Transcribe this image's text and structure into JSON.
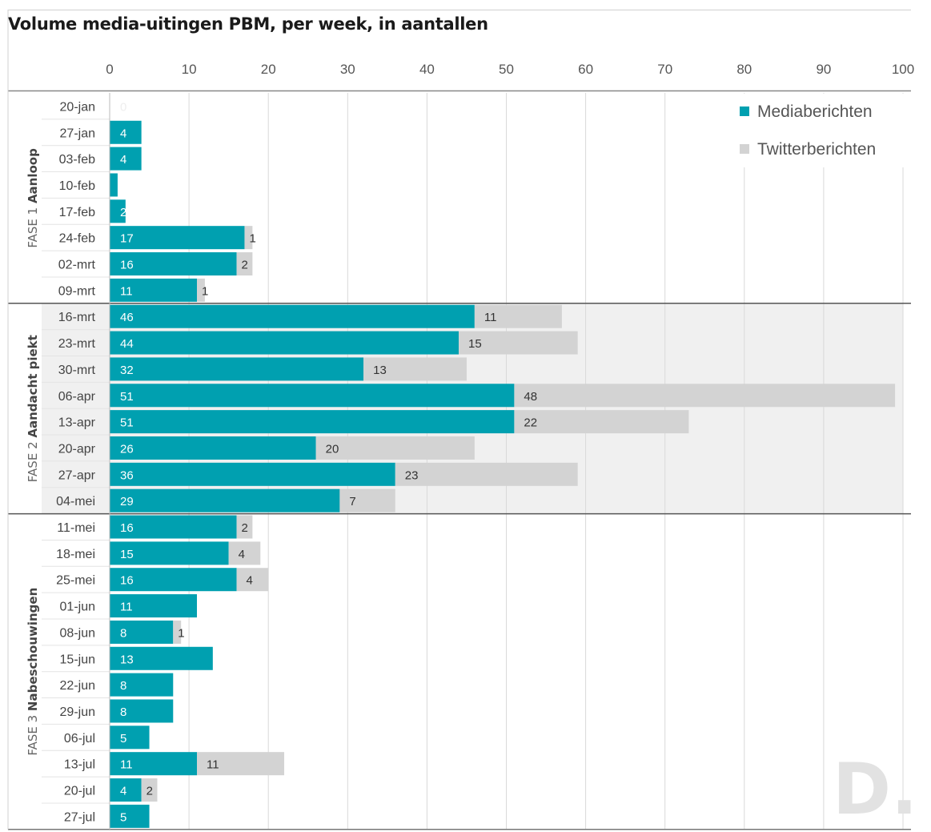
{
  "chart_data": {
    "type": "bar",
    "orientation": "horizontal",
    "stacked": true,
    "title": "Volume media-uitingen PBM, per week, in aantallen",
    "xlim": [
      0,
      100
    ],
    "xticks": [
      0,
      10,
      20,
      30,
      40,
      50,
      60,
      70,
      80,
      90,
      100
    ],
    "grid": true,
    "legend_position": "top-right",
    "watermark": "D.",
    "phases": [
      {
        "label_prefix": "FASE 1 ",
        "label_bold": "Aanloop",
        "count": 8
      },
      {
        "label_prefix": "FASE 2 ",
        "label_bold": "Aandacht piekt",
        "count": 8
      },
      {
        "label_prefix": "FASE 3 ",
        "label_bold": "Nabeschouwingen",
        "count": 12
      }
    ],
    "categories": [
      "20-jan",
      "27-jan",
      "03-feb",
      "10-feb",
      "17-feb",
      "24-feb",
      "02-mrt",
      "09-mrt",
      "16-mrt",
      "23-mrt",
      "30-mrt",
      "06-apr",
      "13-apr",
      "20-apr",
      "27-apr",
      "04-mei",
      "11-mei",
      "18-mei",
      "25-mei",
      "01-jun",
      "08-jun",
      "15-jun",
      "22-jun",
      "29-jun",
      "06-jul",
      "13-jul",
      "20-jul",
      "27-jul"
    ],
    "series": [
      {
        "name": "Mediaberichten",
        "color": "#00a0b0",
        "values": [
          0,
          4,
          4,
          1,
          2,
          17,
          16,
          11,
          46,
          44,
          32,
          51,
          51,
          26,
          36,
          29,
          16,
          15,
          16,
          11,
          8,
          13,
          8,
          8,
          5,
          11,
          4,
          5
        ],
        "labels": [
          "0",
          "4",
          "4",
          "",
          "2",
          "17",
          "16",
          "11",
          "46",
          "44",
          "32",
          "51",
          "51",
          "26",
          "36",
          "29",
          "16",
          "15",
          "16",
          "11",
          "8",
          "13",
          "8",
          "8",
          "5",
          "11",
          "4",
          "5"
        ]
      },
      {
        "name": "Twitterberichten",
        "color": "#d3d3d3",
        "values": [
          0,
          0,
          0,
          0,
          0,
          1,
          2,
          1,
          11,
          15,
          13,
          48,
          22,
          20,
          23,
          7,
          2,
          4,
          4,
          0,
          1,
          0,
          0,
          0,
          0,
          11,
          2,
          0
        ],
        "labels": [
          "",
          "",
          "",
          "",
          "",
          "1",
          "2",
          "1",
          "11",
          "15",
          "13",
          "48",
          "22",
          "20",
          "23",
          "7",
          "2",
          "4",
          "4",
          "",
          "1",
          "",
          "",
          "",
          "",
          "11",
          "2",
          ""
        ]
      }
    ],
    "colors": {
      "media": "#00a0b0",
      "twitter": "#d3d3d3",
      "phase_band": "#f0f0f0",
      "grid": "#d9d9d9"
    }
  }
}
